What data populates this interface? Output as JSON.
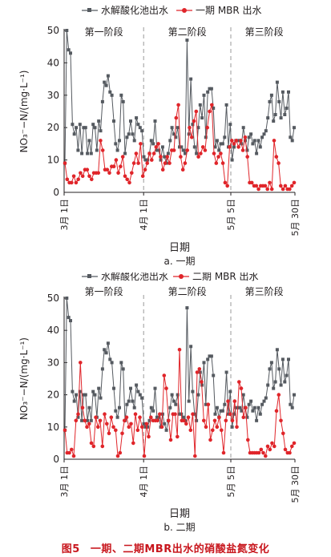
{
  "figure_caption": {
    "number": "图5",
    "title": "一期、二期MBR出水的硝酸盐氮变化"
  },
  "colors": {
    "hydrolysis": "#555a60",
    "mbr": "#e0252a",
    "stage_line": "#9a9a9a"
  },
  "chart_data": [
    {
      "type": "line",
      "subcaption": "a. 一期",
      "xlabel": "日期",
      "ylabel": "NO₃⁻−N/(mg·L⁻¹)",
      "ylim": [
        0,
        50
      ],
      "y_ticks": [
        0,
        10,
        20,
        30,
        40,
        50
      ],
      "x_ticks": [
        {
          "label": "3月 1日",
          "day": 0
        },
        {
          "label": "4月 1日",
          "day": 31
        },
        {
          "label": "5月 5日",
          "day": 65
        },
        {
          "label": "5月 30日",
          "day": 90
        }
      ],
      "stage_dividers": [
        31,
        65
      ],
      "stages": [
        {
          "label": "第一阶段",
          "center_day": 15.5
        },
        {
          "label": "第二阶段",
          "center_day": 48
        },
        {
          "label": "第三阶段",
          "center_day": 78
        }
      ],
      "legend": [
        "水解酸化池出水",
        "一期 MBR 出水"
      ],
      "series": [
        {
          "name": "水解酸化池出水",
          "marker": "square",
          "values": [
            9,
            50,
            44,
            43,
            21,
            18,
            20,
            13,
            21,
            12,
            20,
            20,
            12,
            16,
            12,
            21,
            20,
            13,
            22,
            19,
            28,
            34,
            33,
            36,
            31,
            30,
            22,
            15,
            13,
            16,
            30,
            28,
            12,
            17,
            18,
            22,
            18,
            16,
            23,
            21,
            20,
            19,
            11,
            10,
            10,
            12,
            16,
            15,
            22,
            13,
            13,
            10,
            14,
            11,
            9,
            12,
            16,
            20,
            18,
            17,
            20,
            14,
            14,
            13,
            12,
            47,
            18,
            35,
            21,
            14,
            12,
            20,
            27,
            23,
            30,
            17,
            31,
            32,
            32,
            26,
            14,
            16,
            13,
            15,
            15,
            17,
            27,
            14,
            21,
            10,
            14,
            16,
            16,
            16,
            15,
            20,
            16,
            13,
            17,
            18,
            15,
            16,
            12,
            16,
            14,
            17,
            18,
            19,
            23,
            28,
            30,
            22,
            24,
            34,
            28,
            23,
            31,
            24,
            26,
            31,
            17,
            16,
            20
          ]
        },
        {
          "name": "一期 MBR 出水",
          "marker": "circle",
          "values": [
            9,
            4,
            3,
            3,
            5,
            3,
            4,
            6,
            5,
            7,
            7,
            5,
            4,
            6,
            6,
            6,
            16,
            13,
            7,
            7,
            6,
            8,
            8,
            10,
            6,
            8,
            11,
            5,
            4,
            3,
            6,
            9,
            12,
            9,
            15,
            5,
            7,
            9,
            12,
            10,
            12,
            14,
            15,
            11,
            7,
            9,
            11,
            9,
            13,
            13,
            23,
            27,
            11,
            7,
            9,
            13,
            20,
            17,
            22,
            25,
            11,
            12,
            14,
            13,
            20,
            25,
            27,
            12,
            9,
            11,
            12,
            9,
            3,
            2,
            14,
            16,
            15,
            16,
            14,
            16,
            13,
            17,
            11,
            3,
            3,
            2,
            2,
            1,
            2,
            2,
            2,
            1,
            3,
            1,
            16,
            11,
            9,
            2,
            1,
            2,
            1,
            1,
            2,
            3
          ]
        }
      ]
    },
    {
      "type": "line",
      "subcaption": "b. 二期",
      "xlabel": "日期",
      "ylabel": "NO₃⁻−N/(mg·L⁻¹)",
      "ylim": [
        0,
        50
      ],
      "y_ticks": [
        0,
        10,
        20,
        30,
        40,
        50
      ],
      "x_ticks": [
        {
          "label": "3月 1日",
          "day": 0
        },
        {
          "label": "4月 1日",
          "day": 31
        },
        {
          "label": "5月 5日",
          "day": 65
        },
        {
          "label": "5月 30日",
          "day": 90
        }
      ],
      "stage_dividers": [
        31,
        65
      ],
      "stages": [
        {
          "label": "第一阶段",
          "center_day": 15.5
        },
        {
          "label": "第二阶段",
          "center_day": 48
        },
        {
          "label": "第三阶段",
          "center_day": 78
        }
      ],
      "legend": [
        "水解酸化池出水",
        "二期 MBR 出水"
      ],
      "series": [
        {
          "name": "水解酸化池出水",
          "marker": "square",
          "values": [
            9,
            50,
            44,
            43,
            21,
            18,
            20,
            13,
            21,
            12,
            20,
            20,
            12,
            16,
            12,
            21,
            20,
            13,
            22,
            19,
            28,
            34,
            33,
            36,
            31,
            30,
            22,
            15,
            13,
            16,
            30,
            28,
            12,
            17,
            18,
            22,
            18,
            16,
            23,
            21,
            20,
            19,
            11,
            10,
            10,
            12,
            16,
            15,
            22,
            13,
            13,
            10,
            14,
            11,
            9,
            12,
            16,
            20,
            18,
            17,
            20,
            14,
            14,
            13,
            12,
            47,
            18,
            35,
            21,
            14,
            12,
            20,
            27,
            23,
            30,
            17,
            31,
            32,
            32,
            26,
            14,
            16,
            13,
            15,
            15,
            17,
            27,
            14,
            21,
            10,
            14,
            16,
            16,
            16,
            15,
            20,
            16,
            13,
            17,
            18,
            15,
            16,
            12,
            16,
            14,
            17,
            18,
            19,
            23,
            28,
            30,
            22,
            24,
            34,
            28,
            23,
            31,
            24,
            26,
            31,
            17,
            16,
            20
          ]
        },
        {
          "name": "二期 MBR 出水",
          "marker": "circle",
          "values": [
            9,
            2,
            2,
            3,
            1,
            12,
            14,
            30,
            16,
            12,
            10,
            11,
            5,
            4,
            13,
            10,
            12,
            4,
            14,
            11,
            8,
            13,
            10,
            9,
            1,
            2,
            8,
            12,
            13,
            10,
            11,
            5,
            14,
            9,
            13,
            10,
            1,
            11,
            7,
            13,
            12,
            12,
            12,
            14,
            10,
            26,
            22,
            12,
            6,
            14,
            14,
            7,
            34,
            12,
            12,
            11,
            13,
            9,
            14,
            1,
            27,
            28,
            24,
            12,
            10,
            17,
            6,
            9,
            12,
            10,
            13,
            9,
            2,
            12,
            18,
            14,
            12,
            18,
            10,
            24,
            22,
            13,
            16,
            6,
            2,
            2,
            2,
            2,
            2,
            3,
            2,
            1,
            4,
            3,
            5,
            4,
            15,
            20,
            12,
            8,
            3,
            2,
            2,
            4,
            5
          ]
        }
      ]
    }
  ]
}
